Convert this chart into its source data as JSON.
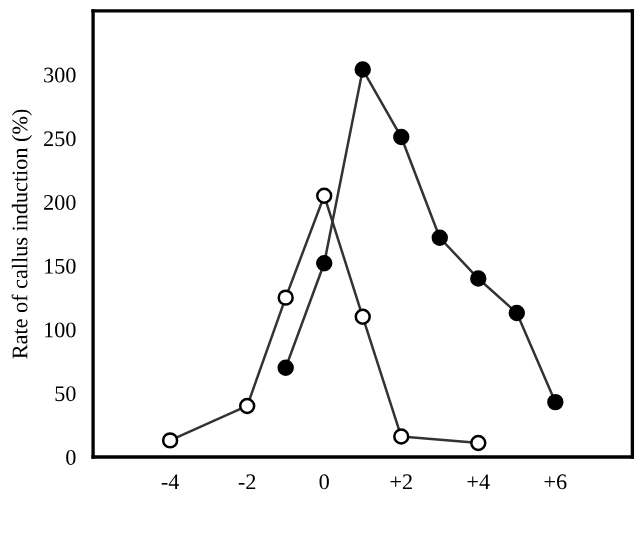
{
  "chart_data": {
    "type": "line",
    "ylabel": "Rate of callus induction (%)",
    "xlim": [
      -6,
      8
    ],
    "ylim": [
      0,
      350
    ],
    "xticks": [
      {
        "value": -4,
        "label": "-4"
      },
      {
        "value": -2,
        "label": "-2"
      },
      0,
      {
        "value": 2,
        "label": "+2"
      },
      {
        "value": 4,
        "label": "+4"
      },
      {
        "value": 6,
        "label": "+6"
      }
    ],
    "yticks": [
      0,
      50,
      100,
      150,
      200,
      250,
      300
    ],
    "marker": "circle",
    "grid": false,
    "legend": false,
    "series": [
      {
        "x": [
          -4,
          -2,
          -1,
          0,
          1,
          2,
          4
        ],
        "values": [
          13,
          40,
          125,
          205,
          110,
          16,
          11
        ],
        "color": "#ffffff"
      },
      {
        "x": [
          -1,
          0,
          1,
          2,
          3,
          4,
          5,
          6
        ],
        "values": [
          70,
          152,
          304,
          251,
          172,
          140,
          113,
          43
        ],
        "color": "#000000"
      }
    ]
  }
}
